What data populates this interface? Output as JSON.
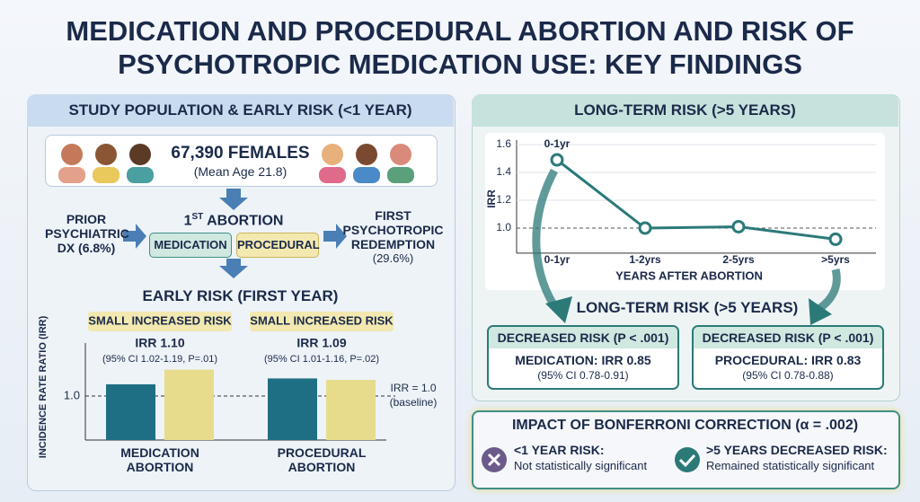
{
  "title": "MEDICATION AND PROCEDURAL ABORTION AND RISK OF PSYCHOTROPIC MEDICATION USE: KEY FINDINGS",
  "population_panel": {
    "header": "STUDY POPULATION & EARLY RISK (<1 YEAR)",
    "count": "67,390 FEMALES",
    "mean_age": "(Mean Age 21.8)",
    "prior_dx": "PRIOR PSYCHIATRIC DX (6.8%)",
    "abortion": {
      "ordinal": "1",
      "suffix": "ST",
      "label": "ABORTION"
    },
    "types": [
      "MEDICATION",
      "PROCEDURAL"
    ],
    "outcome": "FIRST PSYCHOTROPIC REDEMPTION",
    "outcome_share": "(29.6%)"
  },
  "long_term_panel": {
    "header": "LONG-TERM RISK (>5 YEARS)",
    "subtitle": "LONG-TERM RISK (>5 YEARS)",
    "findings": [
      {
        "status": "DECREASED RISK (P < .001)",
        "irr": "MEDICATION: IRR 0.85",
        "ci": "(95% CI 0.78-0.91)"
      },
      {
        "status": "DECREASED RISK (P < .001)",
        "irr": "PROCEDURAL: IRR 0.83",
        "ci": "(95% CI 0.78-0.88)"
      }
    ]
  },
  "bonferroni": {
    "title": "IMPACT OF BONFERRONI CORRECTION (α = .002)",
    "items": [
      {
        "heading": "<1 YEAR RISK:",
        "note": "Not statistically significant"
      },
      {
        "heading": ">5 YEARS DECREASED RISK:",
        "note": "Remained statistically significant"
      }
    ]
  },
  "chart_data": [
    {
      "type": "bar",
      "title": "EARLY RISK (FIRST YEAR)",
      "y_label": "INCIDENCE RATE RATIO (IRR)",
      "categories": [
        "MEDICATION ABORTION",
        "PROCEDURAL ABORTION"
      ],
      "series": [
        {
          "color": "#1f6f84",
          "values": [
            1.04,
            1.06
          ]
        },
        {
          "color": "#e6dc8c",
          "values": [
            1.09,
            1.055
          ]
        }
      ],
      "group_labels": [
        {
          "badge": "SMALL INCREASED RISK",
          "irr": "IRR 1.10",
          "ci": "(95% CI 1.02-1.19, P=.01)"
        },
        {
          "badge": "SMALL INCREASED RISK",
          "irr": "IRR 1.09",
          "ci": "(95% CI 1.01-1.16, P=.02)"
        }
      ],
      "reference": {
        "label": "IRR = 1.0",
        "note": "(baseline)"
      },
      "ylim": [
        0.85,
        1.15
      ],
      "yticks": [
        {
          "value": 1,
          "label": "1.0"
        }
      ]
    },
    {
      "type": "line",
      "y_label": "IRR",
      "x_label": "YEARS AFTER ABORTION",
      "categories": [
        "0-1yr",
        "1-2yrs",
        "2-5yrs",
        ">5yrs"
      ],
      "series": [
        {
          "color": "#2b7a78",
          "values": [
            1.49,
            1.0,
            1.01,
            0.92
          ]
        }
      ],
      "annotation": "0-1yr",
      "ylim": [
        0.82,
        1.6
      ],
      "yticks": [
        {
          "value": 1,
          "label": "1.0"
        },
        1.2,
        1.4,
        1.6
      ],
      "grid": true
    }
  ]
}
